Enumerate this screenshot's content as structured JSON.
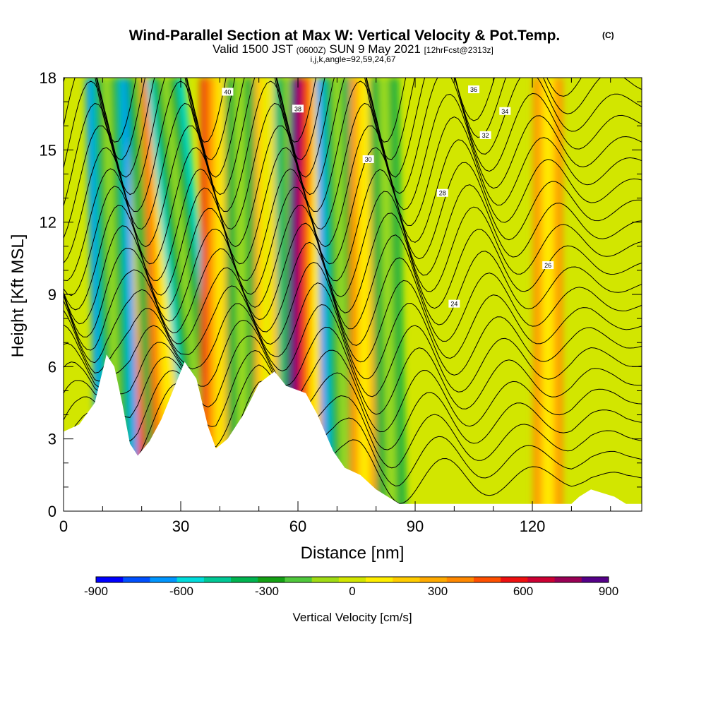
{
  "title": "Wind-Parallel Section at Max W: Vertical Velocity & Pot.Temp.",
  "title_sup": "(C)",
  "subtitle_a": "Valid 1500 JST",
  "subtitle_b": "(0600Z)",
  "subtitle_c": "SUN 9 May 2021",
  "subtitle_d": "[12hrFcst@2313z]",
  "subtitle_line2": "i,j,k,angle=92,59,24,67",
  "chart_data": {
    "type": "heatmap",
    "xlabel": "Distance [nm]",
    "ylabel": "Height [Kft MSL]",
    "xlim": [
      0,
      148
    ],
    "ylim": [
      0,
      18
    ],
    "x_ticks": [
      0,
      30,
      60,
      90,
      120
    ],
    "y_ticks": [
      0,
      3,
      6,
      9,
      12,
      15,
      18
    ],
    "colorbar": {
      "title": "Vertical Velocity [cm/s]",
      "min": -900,
      "max": 900,
      "step": 100,
      "tick_values": [
        -900,
        -600,
        -300,
        0,
        300,
        600,
        900
      ],
      "colors": [
        "#0000ff",
        "#0050ff",
        "#0096ff",
        "#00dcdc",
        "#00c896",
        "#00b450",
        "#14a014",
        "#50c83c",
        "#a0dc14",
        "#d2e600",
        "#ffee00",
        "#ffcc00",
        "#ffaa00",
        "#ff8800",
        "#ff5000",
        "#ee1010",
        "#cc0033",
        "#990055",
        "#550088"
      ]
    },
    "terrain_height_kft": [
      {
        "x": 0,
        "h": 3.3
      },
      {
        "x": 4,
        "h": 3.6
      },
      {
        "x": 8,
        "h": 4.5
      },
      {
        "x": 11,
        "h": 6.5
      },
      {
        "x": 13,
        "h": 6.0
      },
      {
        "x": 15,
        "h": 4.5
      },
      {
        "x": 17,
        "h": 2.8
      },
      {
        "x": 19,
        "h": 2.3
      },
      {
        "x": 22,
        "h": 2.9
      },
      {
        "x": 25,
        "h": 3.8
      },
      {
        "x": 28,
        "h": 5.0
      },
      {
        "x": 31,
        "h": 6.2
      },
      {
        "x": 34,
        "h": 5.5
      },
      {
        "x": 37,
        "h": 3.5
      },
      {
        "x": 39,
        "h": 2.6
      },
      {
        "x": 42,
        "h": 3.0
      },
      {
        "x": 46,
        "h": 4.0
      },
      {
        "x": 50,
        "h": 5.3
      },
      {
        "x": 54,
        "h": 5.8
      },
      {
        "x": 57,
        "h": 5.2
      },
      {
        "x": 62,
        "h": 4.9
      },
      {
        "x": 65,
        "h": 4.0
      },
      {
        "x": 69,
        "h": 2.5
      },
      {
        "x": 72,
        "h": 1.8
      },
      {
        "x": 76,
        "h": 1.5
      },
      {
        "x": 80,
        "h": 0.9
      },
      {
        "x": 84,
        "h": 0.5
      },
      {
        "x": 86,
        "h": 0.3
      },
      {
        "x": 130,
        "h": 0.3
      },
      {
        "x": 132,
        "h": 0.6
      },
      {
        "x": 135,
        "h": 0.9
      },
      {
        "x": 141,
        "h": 0.6
      },
      {
        "x": 144,
        "h": 0.3
      },
      {
        "x": 148,
        "h": 0.3
      }
    ],
    "vertical_velocity_bands_cm_s": [
      {
        "x_base": 17,
        "x_top": 18,
        "sign": 1,
        "peak": 900
      },
      {
        "x_base": 14,
        "x_top": 11,
        "sign": -1,
        "peak": -650
      },
      {
        "x_base": 26,
        "x_top": 20,
        "sign": -1,
        "peak": -400
      },
      {
        "x_base": 28,
        "x_top": 24,
        "sign": 1,
        "peak": 450
      },
      {
        "x_base": 37,
        "x_top": 26,
        "sign": -1,
        "peak": -550
      },
      {
        "x_base": 40,
        "x_top": 40,
        "sign": 1,
        "peak": 550
      },
      {
        "x_base": 46,
        "x_top": 45,
        "sign": -1,
        "peak": -350
      },
      {
        "x_base": 52,
        "x_top": 52,
        "sign": 1,
        "peak": 250
      },
      {
        "x_base": 60,
        "x_top": 58,
        "sign": -1,
        "peak": -450
      },
      {
        "x_base": 64,
        "x_top": 65,
        "sign": 1,
        "peak": 900
      },
      {
        "x_base": 72,
        "x_top": 70,
        "sign": -1,
        "peak": -650
      },
      {
        "x_base": 77,
        "x_top": 77,
        "sign": 1,
        "peak": 350
      },
      {
        "x_base": 84,
        "x_top": 82,
        "sign": -1,
        "peak": -350
      },
      {
        "x_base": 124,
        "x_top": 124,
        "sign": 1,
        "peak": 350
      }
    ],
    "contour_labels_c": [
      "24",
      "26",
      "28",
      "30",
      "32",
      "34",
      "36",
      "38",
      "40"
    ]
  }
}
